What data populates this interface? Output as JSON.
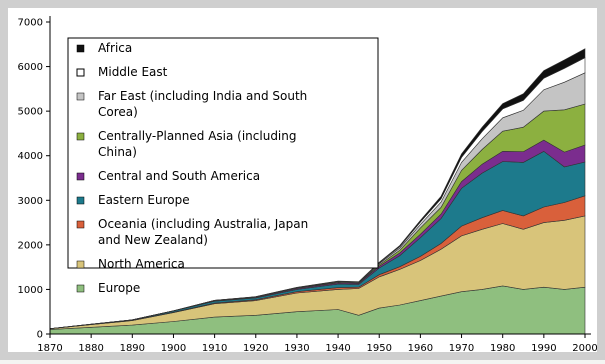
{
  "colors": {
    "frame": "#cfcfcf",
    "paper": "#ffffff",
    "axis": "#000000",
    "legend_border": "#000000"
  },
  "chart_data": {
    "type": "area",
    "stacked": true,
    "x": [
      1870,
      1880,
      1890,
      1900,
      1910,
      1920,
      1930,
      1940,
      1945,
      1950,
      1955,
      1960,
      1965,
      1970,
      1975,
      1980,
      1985,
      1990,
      1995,
      2000
    ],
    "xticks": [
      1870,
      1880,
      1890,
      1900,
      1910,
      1920,
      1930,
      1940,
      1950,
      1960,
      1970,
      1980,
      1990,
      2000
    ],
    "yticks": [
      0,
      1000,
      2000,
      3000,
      4000,
      5000,
      6000,
      7000
    ],
    "xlim": [
      1870,
      2000
    ],
    "ylim": [
      0,
      7000
    ],
    "grid": false,
    "legend_position": "top-left",
    "series": [
      {
        "name": "Europe",
        "color": "#8fbf7f",
        "values": [
          100,
          150,
          200,
          280,
          380,
          420,
          500,
          550,
          420,
          580,
          650,
          750,
          850,
          950,
          1000,
          1080,
          1000,
          1050,
          1000,
          1050
        ]
      },
      {
        "name": "North America",
        "color": "#d8c47a",
        "values": [
          20,
          60,
          100,
          200,
          300,
          330,
          420,
          450,
          600,
          700,
          800,
          900,
          1050,
          1250,
          1350,
          1400,
          1350,
          1450,
          1550,
          1600
        ]
      },
      {
        "name": "Oceania (including Australia, Japan and New Zealand)",
        "color": "#d9603b",
        "values": [
          0,
          2,
          5,
          10,
          15,
          20,
          30,
          40,
          30,
          50,
          60,
          90,
          130,
          220,
          260,
          290,
          300,
          350,
          400,
          450
        ]
      },
      {
        "name": "Eastern Europe",
        "color": "#1d7a8c",
        "values": [
          0,
          5,
          10,
          25,
          40,
          40,
          50,
          80,
          60,
          150,
          250,
          420,
          560,
          850,
          1000,
          1100,
          1200,
          1250,
          800,
          760
        ]
      },
      {
        "name": "Central and South America",
        "color": "#7b2d8e",
        "values": [
          0,
          2,
          3,
          5,
          10,
          15,
          20,
          25,
          25,
          40,
          60,
          80,
          100,
          150,
          200,
          230,
          240,
          250,
          330,
          380
        ]
      },
      {
        "name": "Centrally-Planned Asia (including China)",
        "color": "#8cb040",
        "values": [
          0,
          0,
          0,
          0,
          5,
          5,
          10,
          15,
          10,
          30,
          60,
          140,
          150,
          250,
          330,
          450,
          550,
          650,
          950,
          920
        ]
      },
      {
        "name": "Far East (including India and South Corea)",
        "color": "#c4c4c4",
        "values": [
          0,
          0,
          0,
          1,
          5,
          5,
          10,
          15,
          15,
          30,
          50,
          80,
          120,
          180,
          240,
          300,
          380,
          480,
          620,
          700
        ]
      },
      {
        "name": "Middle East",
        "color": "#ffffff",
        "values": [
          0,
          0,
          0,
          0,
          0,
          0,
          2,
          5,
          5,
          15,
          30,
          50,
          70,
          110,
          160,
          200,
          220,
          260,
          310,
          340
        ]
      },
      {
        "name": "Africa",
        "color": "#111111",
        "values": [
          0,
          0,
          0,
          0,
          2,
          3,
          5,
          8,
          8,
          15,
          25,
          40,
          60,
          80,
          100,
          120,
          150,
          170,
          190,
          200
        ]
      }
    ],
    "legend_order": [
      "Africa",
      "Middle East",
      "Far East (including India and South Corea)",
      "Centrally-Planned Asia (including China)",
      "Central and South America",
      "Eastern Europe",
      "Oceania (including Australia, Japan and New Zealand)",
      "North America",
      "Europe"
    ]
  }
}
